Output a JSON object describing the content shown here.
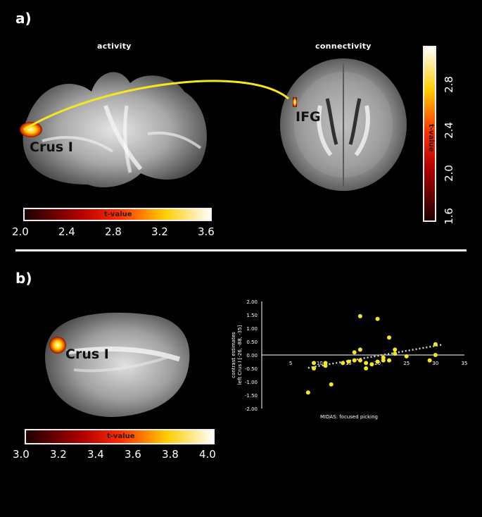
{
  "panels": {
    "a": {
      "label": "a)",
      "activity_title": "activity",
      "connectivity_title": "connectivity",
      "region_left": "Crus I",
      "region_right": "IFG",
      "h_colorbar": {
        "title": "t-value",
        "ticks": [
          "2.0",
          "2.4",
          "2.8",
          "3.2",
          "3.6"
        ]
      },
      "v_colorbar": {
        "title": "t-value",
        "ticks": [
          "2.8",
          "2.4",
          "2.0",
          "1.6"
        ]
      }
    },
    "b": {
      "label": "b)",
      "region": "Crus I",
      "colorbar": {
        "title": "t-value",
        "ticks": [
          "3.0",
          "3.2",
          "3.4",
          "3.6",
          "3.8",
          "4.0"
        ]
      }
    }
  },
  "colors": {
    "curve": "#f6e620",
    "points": "#f6e620",
    "trend": "#d0d0d0"
  },
  "chart_data": {
    "type": "scatter",
    "xlabel": "MIDAS: focused picking",
    "ylabel_line1": "contrast estimates",
    "ylabel_line2": "left Crus I [-26, -88, -35]",
    "xlim": [
      0,
      35
    ],
    "ylim": [
      -2.0,
      2.0
    ],
    "x_ticks": [
      "5",
      "10",
      "15",
      "20",
      "25",
      "30",
      "35"
    ],
    "y_ticks": [
      "2.00",
      "1.50",
      "1.00",
      "0.50",
      "0.00",
      "-0.50",
      "-1.00",
      "-1.50",
      "-2.00"
    ],
    "points": [
      [
        8,
        -1.4
      ],
      [
        9,
        -0.3
      ],
      [
        9,
        -0.5
      ],
      [
        11,
        -0.4
      ],
      [
        11,
        -0.3
      ],
      [
        12,
        -1.1
      ],
      [
        14,
        -0.3
      ],
      [
        15,
        -0.25
      ],
      [
        16,
        -0.2
      ],
      [
        16,
        0.1
      ],
      [
        17,
        1.45
      ],
      [
        17,
        0.2
      ],
      [
        17,
        -0.2
      ],
      [
        18,
        -0.5
      ],
      [
        18,
        -0.3
      ],
      [
        19,
        -0.35
      ],
      [
        20,
        1.35
      ],
      [
        20,
        -0.25
      ],
      [
        21,
        -0.1
      ],
      [
        21,
        -0.2
      ],
      [
        22,
        0.65
      ],
      [
        22,
        -0.2
      ],
      [
        23,
        0.2
      ],
      [
        23,
        0.05
      ],
      [
        25,
        -0.05
      ],
      [
        29,
        -0.2
      ],
      [
        30,
        0.4
      ],
      [
        30,
        0.0
      ]
    ],
    "trend": [
      [
        8,
        -0.48
      ],
      [
        31,
        0.38
      ]
    ]
  }
}
